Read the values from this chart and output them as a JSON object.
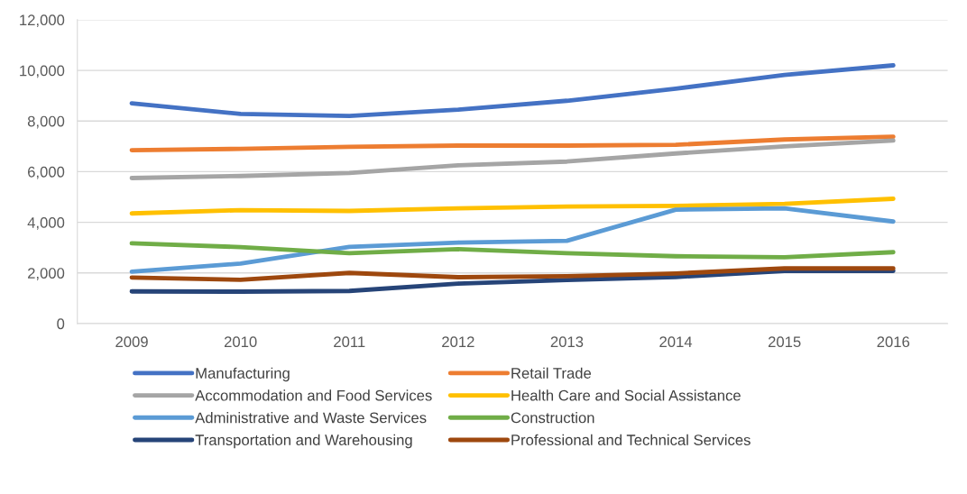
{
  "chart_data": {
    "type": "line",
    "categories": [
      "2009",
      "2010",
      "2011",
      "2012",
      "2013",
      "2014",
      "2015",
      "2016"
    ],
    "series": [
      {
        "name": "Manufacturing",
        "color": "#4472c4",
        "values": [
          8700,
          8280,
          8200,
          8450,
          8800,
          9280,
          9820,
          10200
        ]
      },
      {
        "name": "Retail Trade",
        "color": "#ed7d31",
        "values": [
          6850,
          6900,
          6980,
          7030,
          7030,
          7060,
          7270,
          7380
        ]
      },
      {
        "name": "Accommodation and Food Services",
        "color": "#a5a5a5",
        "values": [
          5750,
          5830,
          5950,
          6250,
          6400,
          6720,
          7000,
          7230
        ]
      },
      {
        "name": "Health Care and Social Assistance",
        "color": "#ffc000",
        "values": [
          4350,
          4480,
          4450,
          4550,
          4620,
          4650,
          4730,
          4930
        ]
      },
      {
        "name": "Administrative and Waste Services",
        "color": "#5b9bd5",
        "values": [
          2050,
          2370,
          3030,
          3200,
          3270,
          4500,
          4550,
          4030
        ]
      },
      {
        "name": "Construction",
        "color": "#70ad47",
        "values": [
          3170,
          3020,
          2780,
          2940,
          2780,
          2660,
          2620,
          2820
        ]
      },
      {
        "name": "Transportation and Warehousing",
        "color": "#264478",
        "values": [
          1270,
          1260,
          1290,
          1580,
          1720,
          1840,
          2080,
          2080
        ]
      },
      {
        "name": "Professional and Technical Services",
        "color": "#9e480e",
        "values": [
          1820,
          1730,
          2000,
          1830,
          1870,
          1980,
          2180,
          2180
        ]
      }
    ],
    "ylim": [
      0,
      12000
    ],
    "yticks": [
      {
        "value": 0,
        "label": "0"
      },
      {
        "value": 2000,
        "label": "2,000"
      },
      {
        "value": 4000,
        "label": "4,000"
      },
      {
        "value": 6000,
        "label": "6,000"
      },
      {
        "value": 8000,
        "label": "8,000"
      },
      {
        "value": 10000,
        "label": "10,000"
      },
      {
        "value": 12000,
        "label": "12,000"
      }
    ],
    "grid": "y",
    "legend": "bottom",
    "marker": "none",
    "line_style": "solid"
  }
}
